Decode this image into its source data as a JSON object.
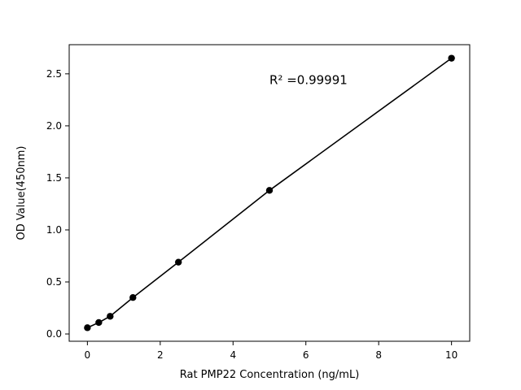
{
  "figure": {
    "background": "#ffffff",
    "foreground": "#000000"
  },
  "chart_data": {
    "type": "scatter",
    "title": "",
    "xlabel": "Rat PMP22 Concentration (ng/mL)",
    "ylabel": "OD Value(450nm)",
    "x": [
      0,
      0.3125,
      0.625,
      1.25,
      2.5,
      5,
      10
    ],
    "y": [
      0.06,
      0.11,
      0.17,
      0.35,
      0.69,
      1.38,
      2.65
    ],
    "line": true,
    "line_color": "#000000",
    "marker": "circle",
    "marker_color": "#000000",
    "xlim": [
      -0.5,
      10.5
    ],
    "ylim": [
      -0.07,
      2.78
    ],
    "xticks": [
      0,
      2,
      4,
      6,
      8,
      10
    ],
    "yticks": [
      0.0,
      0.5,
      1.0,
      1.5,
      2.0,
      2.5
    ],
    "grid": false,
    "legend": null,
    "annotation": {
      "text": "R² =0.99991",
      "x": 5.0,
      "y": 2.4
    }
  }
}
